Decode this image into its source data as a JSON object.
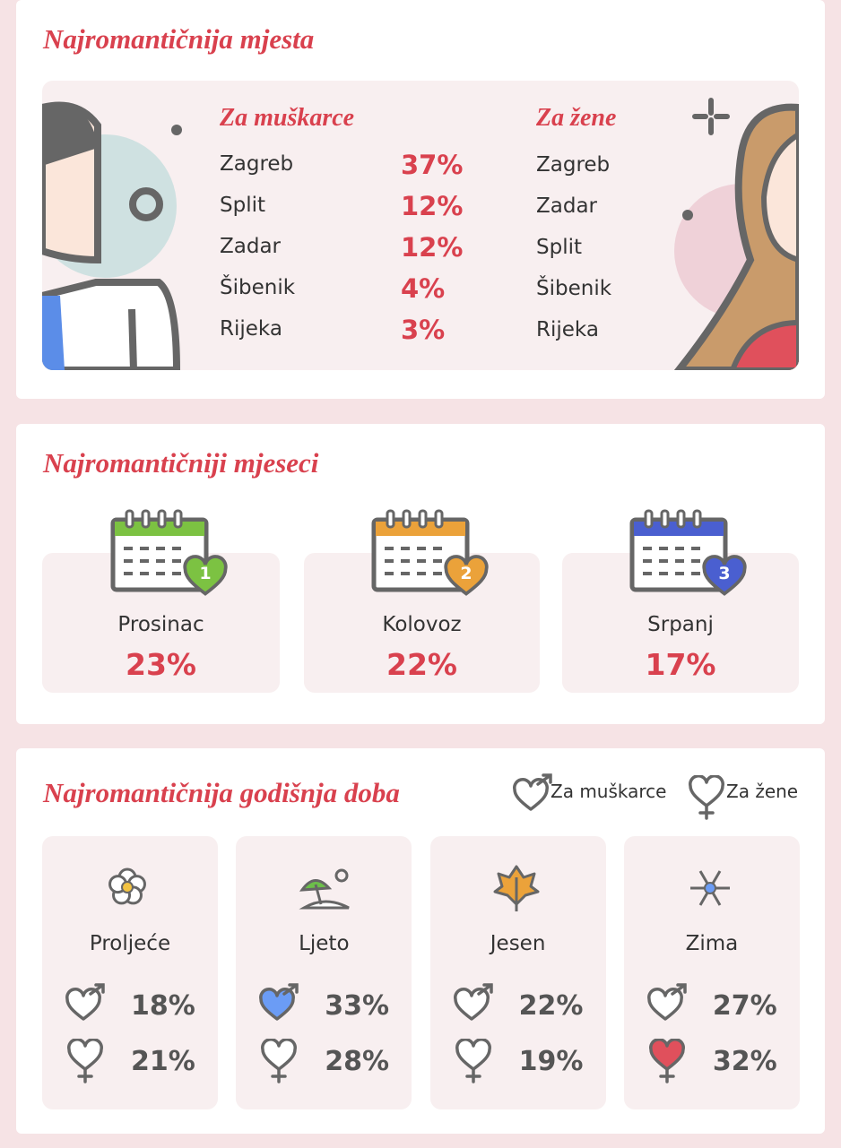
{
  "places": {
    "title": "Najromantičnija mjesta",
    "men": {
      "heading": "Za muškarce",
      "rows": [
        {
          "city": "Zagreb",
          "share": "37%"
        },
        {
          "city": "Split",
          "share": "12%"
        },
        {
          "city": "Zadar",
          "share": "12%"
        },
        {
          "city": "Šibenik",
          "share": "4%"
        },
        {
          "city": "Rijeka",
          "share": "3%"
        }
      ]
    },
    "women": {
      "heading": "Za žene",
      "cities": [
        "Zagreb",
        "Zadar",
        "Split",
        "Šibenik",
        "Rijeka"
      ]
    }
  },
  "months": {
    "title": "Najromantičniji mjeseci",
    "items": [
      {
        "rank": "1",
        "name": "Prosinac",
        "share": "23%",
        "color": "#7cc242"
      },
      {
        "rank": "2",
        "name": "Kolovoz",
        "share": "22%",
        "color": "#eba23a"
      },
      {
        "rank": "3",
        "name": "Srpanj",
        "share": "17%",
        "color": "#4a5fd0"
      }
    ]
  },
  "seasons": {
    "title": "Najromantičnija godišnja doba",
    "legend": {
      "men": "Za muškarce",
      "women": "Za žene"
    },
    "items": [
      {
        "name": "Proljeće",
        "men": "18%",
        "women": "21%",
        "men_fill": "#ffffff",
        "women_fill": "#ffffff"
      },
      {
        "name": "Ljeto",
        "men": "33%",
        "women": "28%",
        "men_fill": "#6b9cf5",
        "women_fill": "#ffffff"
      },
      {
        "name": "Jesen",
        "men": "22%",
        "women": "19%",
        "men_fill": "#ffffff",
        "women_fill": "#ffffff"
      },
      {
        "name": "Zima",
        "men": "27%",
        "women": "32%",
        "men_fill": "#ffffff",
        "women_fill": "#e0505c"
      }
    ]
  }
}
